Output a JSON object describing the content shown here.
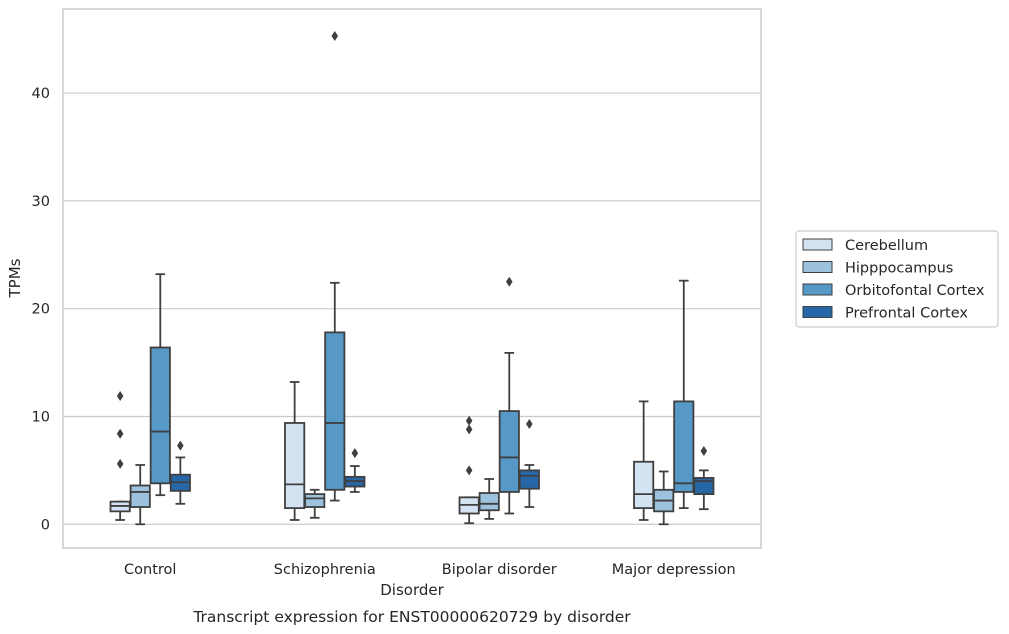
{
  "chart_data": {
    "type": "box",
    "title": "Transcript expression for ENST00000620729 by disorder",
    "xlabel": "Disorder",
    "ylabel": "TPMs",
    "ylim": [
      -2.2,
      47.8
    ],
    "yticks": [
      0,
      10,
      20,
      30,
      40
    ],
    "grid": true,
    "legend_position": "right",
    "categories": [
      "Control",
      "Schizophrenia",
      "Bipolar disorder",
      "Major depression"
    ],
    "series": [
      {
        "name": "Cerebellum",
        "color": "#d4e3f2",
        "boxes": [
          {
            "whislo": 0.4,
            "q1": 1.2,
            "med": 1.7,
            "q3": 2.1,
            "whishi": 2.1,
            "fliers": [
              5.6,
              8.4,
              11.9
            ]
          },
          {
            "whislo": 0.4,
            "q1": 1.5,
            "med": 3.7,
            "q3": 9.4,
            "whishi": 13.2,
            "fliers": []
          },
          {
            "whislo": 0.1,
            "q1": 1.0,
            "med": 1.8,
            "q3": 2.5,
            "whishi": 2.5,
            "fliers": [
              5.0,
              8.8,
              9.6
            ]
          },
          {
            "whislo": 0.4,
            "q1": 1.5,
            "med": 2.8,
            "q3": 5.8,
            "whishi": 11.4,
            "fliers": []
          }
        ]
      },
      {
        "name": "Hipppocampus",
        "color": "#9dc2de",
        "boxes": [
          {
            "whislo": 0.0,
            "q1": 1.6,
            "med": 3.0,
            "q3": 3.6,
            "whishi": 5.5,
            "fliers": []
          },
          {
            "whislo": 0.6,
            "q1": 1.6,
            "med": 2.4,
            "q3": 2.8,
            "whishi": 3.2,
            "fliers": []
          },
          {
            "whislo": 0.5,
            "q1": 1.3,
            "med": 1.9,
            "q3": 2.9,
            "whishi": 4.2,
            "fliers": []
          },
          {
            "whislo": 0.0,
            "q1": 1.2,
            "med": 2.2,
            "q3": 3.2,
            "whishi": 4.9,
            "fliers": []
          }
        ]
      },
      {
        "name": "Orbitofontal Cortex",
        "color": "#5698c6",
        "boxes": [
          {
            "whislo": 2.7,
            "q1": 3.8,
            "med": 8.6,
            "q3": 16.4,
            "whishi": 23.2,
            "fliers": []
          },
          {
            "whislo": 2.2,
            "q1": 3.2,
            "med": 9.4,
            "q3": 17.8,
            "whishi": 22.4,
            "fliers": [
              45.3
            ]
          },
          {
            "whislo": 1.0,
            "q1": 3.0,
            "med": 6.2,
            "q3": 10.5,
            "whishi": 15.9,
            "fliers": [
              22.5
            ]
          },
          {
            "whislo": 1.5,
            "q1": 3.0,
            "med": 3.8,
            "q3": 11.4,
            "whishi": 22.6,
            "fliers": []
          }
        ]
      },
      {
        "name": "Prefrontal Cortex",
        "color": "#2767a8",
        "boxes": [
          {
            "whislo": 1.9,
            "q1": 3.1,
            "med": 3.9,
            "q3": 4.6,
            "whishi": 6.2,
            "fliers": [
              7.3
            ]
          },
          {
            "whislo": 3.0,
            "q1": 3.5,
            "med": 4.0,
            "q3": 4.4,
            "whishi": 5.4,
            "fliers": [
              6.6
            ]
          },
          {
            "whislo": 1.6,
            "q1": 3.3,
            "med": 4.5,
            "q3": 5.0,
            "whishi": 5.5,
            "fliers": [
              9.3
            ]
          },
          {
            "whislo": 1.4,
            "q1": 2.8,
            "med": 4.0,
            "q3": 4.3,
            "whishi": 5.0,
            "fliers": [
              6.8
            ]
          }
        ]
      }
    ]
  }
}
